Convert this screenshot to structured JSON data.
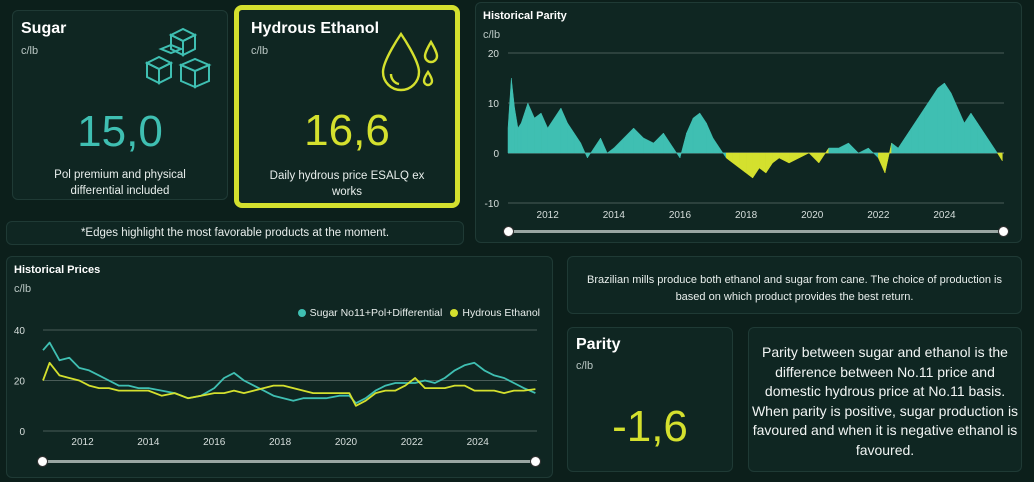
{
  "colors": {
    "background": "#0c1f1b",
    "panel": "#0f2622",
    "sugar": "#3fbfb2",
    "ethanol": "#d4e02e",
    "highlight_border": "#d4e02e"
  },
  "sugar_card": {
    "title": "Sugar",
    "unit": "c/lb",
    "value": "15,0",
    "description": "Pol premium and physical differential included",
    "icon": "sugar-cubes-icon"
  },
  "ethanol_card": {
    "title": "Hydrous Ethanol",
    "unit": "c/lb",
    "value": "16,6",
    "description": "Daily hydrous price ESALQ ex works",
    "icon": "drops-icon"
  },
  "note": "*Edges highlight the most favorable products at the moment.",
  "parity_chart": {
    "title": "Historical Parity",
    "unit": "c/lb",
    "y_ticks": [
      "20",
      "10",
      "0",
      "-10"
    ],
    "x_ticks": [
      "2012",
      "2014",
      "2016",
      "2018",
      "2020",
      "2022",
      "2024"
    ]
  },
  "prices_chart": {
    "title": "Historical Prices",
    "unit": "c/lb",
    "legend": [
      "Sugar No11+Pol+Differential",
      "Hydrous Ethanol"
    ],
    "y_ticks": [
      "40",
      "20",
      "0"
    ],
    "x_ticks": [
      "2012",
      "2014",
      "2016",
      "2018",
      "2020",
      "2022",
      "2024"
    ]
  },
  "info_text": "Brazilian mills produce both ethanol and sugar from cane. The choice of production is based on which product provides the best return.",
  "parity_card": {
    "title": "Parity",
    "unit": "c/lb",
    "value": "-1,6"
  },
  "parity_explanation": "Parity between sugar and ethanol is the difference between No.11 price and domestic hydrous price at No.11 basis. When parity is positive, sugar production is favoured and when it is negative ethanol is favoured.",
  "chart_data": [
    {
      "type": "area",
      "title": "Historical Parity",
      "ylabel": "c/lb",
      "ylim": [
        -10,
        20
      ],
      "xlim": [
        2010.8,
        2025.8
      ],
      "grid": true,
      "x": [
        2010.8,
        2010.9,
        2011.0,
        2011.1,
        2011.2,
        2011.4,
        2011.6,
        2011.8,
        2012.0,
        2012.2,
        2012.4,
        2012.6,
        2012.8,
        2013.0,
        2013.2,
        2013.4,
        2013.6,
        2013.8,
        2014.0,
        2014.3,
        2014.6,
        2014.9,
        2015.2,
        2015.5,
        2015.8,
        2016.0,
        2016.2,
        2016.4,
        2016.6,
        2016.8,
        2017.0,
        2017.2,
        2017.4,
        2017.6,
        2017.8,
        2018.0,
        2018.2,
        2018.4,
        2018.6,
        2018.8,
        2019.0,
        2019.3,
        2019.6,
        2019.9,
        2020.2,
        2020.5,
        2020.8,
        2021.1,
        2021.4,
        2021.7,
        2022.0,
        2022.2,
        2022.4,
        2022.6,
        2022.8,
        2023.0,
        2023.2,
        2023.4,
        2023.6,
        2023.8,
        2024.0,
        2024.2,
        2024.4,
        2024.6,
        2024.8,
        2025.0,
        2025.2,
        2025.4,
        2025.6,
        2025.75
      ],
      "series": [
        {
          "values": [
            5,
            15,
            9,
            5,
            6,
            10,
            7,
            8,
            5,
            7,
            9,
            6,
            4,
            2,
            -1,
            1,
            3,
            0,
            1,
            3,
            5,
            3,
            2,
            4,
            1,
            -1,
            4,
            7,
            8,
            6,
            3,
            1,
            -1,
            -2,
            -3,
            -4,
            -5,
            -3,
            -4,
            -2,
            -1,
            -2,
            -1,
            0,
            -2,
            1,
            1,
            2,
            0,
            1,
            -1,
            -4,
            2,
            1,
            3,
            5,
            7,
            9,
            11,
            13,
            14,
            12,
            9,
            6,
            8,
            6,
            4,
            2,
            0,
            -1.6
          ]
        }
      ]
    },
    {
      "type": "line",
      "title": "Historical Prices",
      "ylabel": "c/lb",
      "ylim": [
        0,
        40
      ],
      "xlim": [
        2010.8,
        2025.8
      ],
      "grid": true,
      "legend_position": "top-right",
      "x": [
        2010.8,
        2011.0,
        2011.3,
        2011.6,
        2011.9,
        2012.2,
        2012.5,
        2012.8,
        2013.1,
        2013.4,
        2013.7,
        2014.0,
        2014.4,
        2014.8,
        2015.2,
        2015.6,
        2016.0,
        2016.3,
        2016.6,
        2016.9,
        2017.2,
        2017.5,
        2017.8,
        2018.1,
        2018.4,
        2018.7,
        2019.0,
        2019.4,
        2019.8,
        2020.1,
        2020.3,
        2020.6,
        2020.9,
        2021.2,
        2021.5,
        2021.8,
        2022.1,
        2022.4,
        2022.7,
        2023.0,
        2023.3,
        2023.6,
        2023.9,
        2024.2,
        2024.5,
        2024.8,
        2025.1,
        2025.4,
        2025.75
      ],
      "series": [
        {
          "name": "Sugar No11+Pol+Differential",
          "values": [
            32,
            35,
            28,
            29,
            25,
            24,
            22,
            20,
            18,
            18,
            17,
            17,
            16,
            15,
            13,
            14,
            17,
            21,
            23,
            20,
            18,
            16,
            14,
            13,
            12,
            13,
            13,
            13,
            14,
            14,
            11,
            13,
            16,
            18,
            19,
            19,
            19,
            20,
            19,
            21,
            24,
            26,
            27,
            24,
            22,
            21,
            19,
            17,
            15
          ]
        },
        {
          "name": "Hydrous Ethanol",
          "values": [
            20,
            27,
            22,
            21,
            20,
            18,
            17,
            17,
            16,
            16,
            16,
            16,
            14,
            15,
            13,
            14,
            15,
            15,
            16,
            15,
            16,
            17,
            18,
            18,
            17,
            16,
            15,
            15,
            15,
            15,
            10,
            12,
            15,
            16,
            16,
            18,
            21,
            17,
            17,
            17,
            18,
            18,
            16,
            16,
            16,
            15,
            16,
            16,
            16.6
          ]
        }
      ]
    }
  ]
}
